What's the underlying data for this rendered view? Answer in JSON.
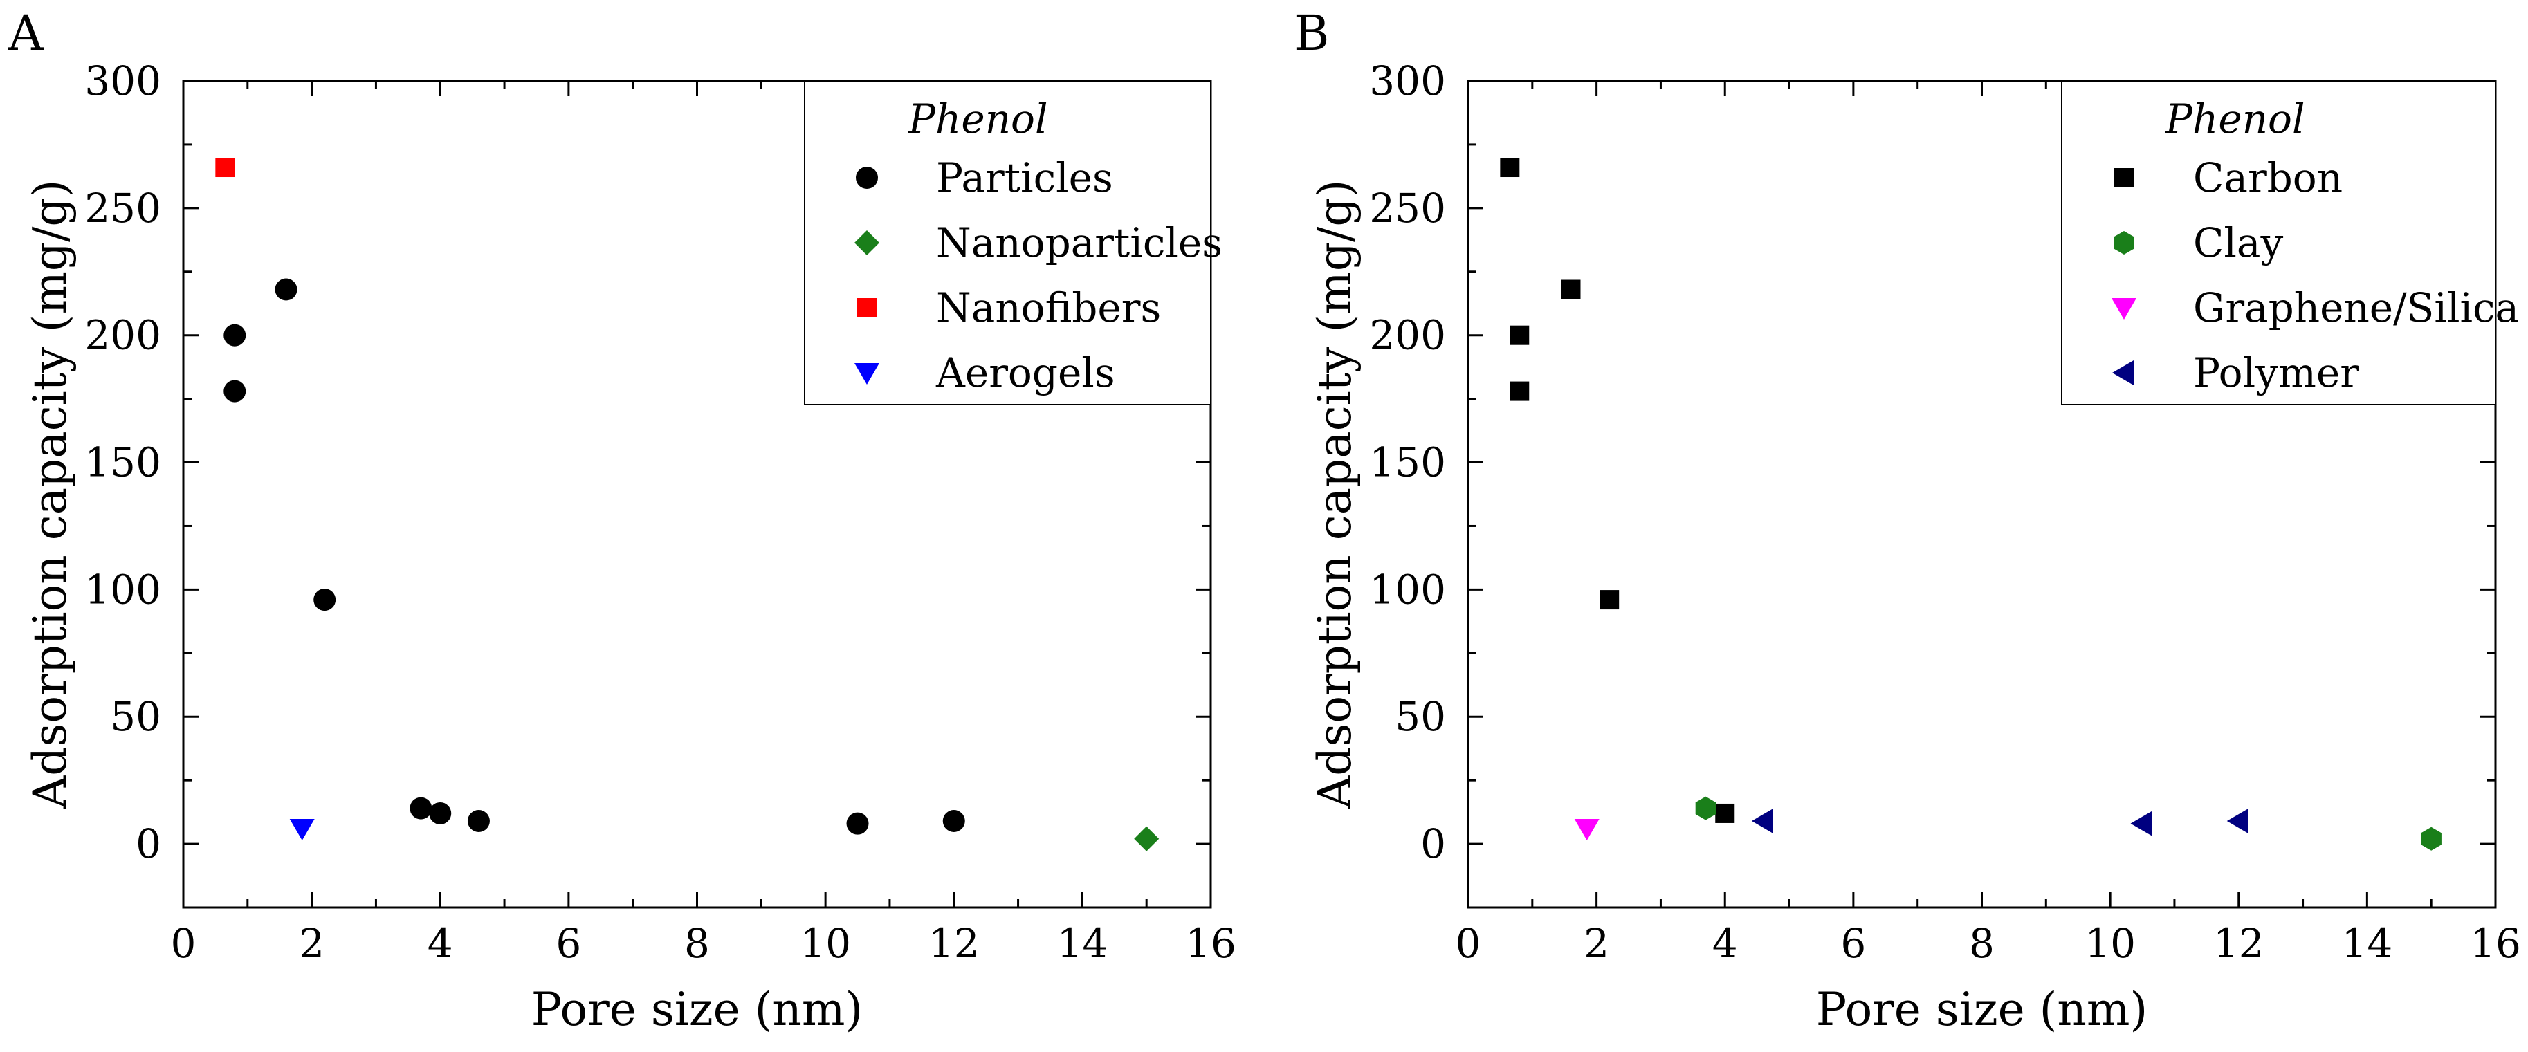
{
  "chart_data": [
    {
      "type": "scatter",
      "panel_label": "A",
      "xlabel": "Pore size (nm)",
      "ylabel": "Adsorption capacity (mg/g)",
      "xlim": [
        0,
        16
      ],
      "ylim": [
        -25,
        300
      ],
      "x_ticks": [
        0,
        2,
        4,
        6,
        8,
        10,
        12,
        14,
        16
      ],
      "y_ticks": [
        0,
        50,
        100,
        150,
        200,
        250,
        300
      ],
      "legend_title": "Phenol",
      "legend_position": "top-right",
      "series": [
        {
          "name": "Particles",
          "marker": "circle",
          "color": "#000000",
          "points": [
            [
              0.8,
              200
            ],
            [
              0.8,
              178
            ],
            [
              1.6,
              218
            ],
            [
              2.2,
              96
            ],
            [
              3.7,
              14
            ],
            [
              4.0,
              12
            ],
            [
              4.6,
              9
            ],
            [
              10.5,
              8
            ],
            [
              12.0,
              9
            ]
          ]
        },
        {
          "name": "Nanoparticles",
          "marker": "diamond",
          "color": "#1a7f1a",
          "points": [
            [
              15.0,
              2
            ]
          ]
        },
        {
          "name": "Nanofibers",
          "marker": "square",
          "color": "#ff0000",
          "points": [
            [
              0.65,
              266
            ]
          ]
        },
        {
          "name": "Aerogels",
          "marker": "triangle-down",
          "color": "#0000ff",
          "points": [
            [
              1.85,
              6
            ]
          ]
        }
      ]
    },
    {
      "type": "scatter",
      "panel_label": "B",
      "xlabel": "Pore size (nm)",
      "ylabel": "Adsorption capacity (mg/g)",
      "xlim": [
        0,
        16
      ],
      "ylim": [
        -25,
        300
      ],
      "x_ticks": [
        0,
        2,
        4,
        6,
        8,
        10,
        12,
        14,
        16
      ],
      "y_ticks": [
        0,
        50,
        100,
        150,
        200,
        250,
        300
      ],
      "legend_title": "Phenol",
      "legend_position": "top-right",
      "series": [
        {
          "name": "Carbon",
          "marker": "square",
          "color": "#000000",
          "points": [
            [
              0.65,
              266
            ],
            [
              0.8,
              200
            ],
            [
              0.8,
              178
            ],
            [
              1.6,
              218
            ],
            [
              2.2,
              96
            ],
            [
              4.0,
              12
            ]
          ]
        },
        {
          "name": "Clay",
          "marker": "hexagon",
          "color": "#1a7f1a",
          "points": [
            [
              3.7,
              14
            ],
            [
              15.0,
              2
            ]
          ]
        },
        {
          "name": "Graphene/Silica",
          "marker": "triangle-down",
          "color": "#ff00ff",
          "points": [
            [
              1.85,
              6
            ]
          ]
        },
        {
          "name": "Polymer",
          "marker": "triangle-left",
          "color": "#000080",
          "points": [
            [
              4.6,
              9
            ],
            [
              10.5,
              8
            ],
            [
              12.0,
              9
            ]
          ]
        }
      ]
    }
  ]
}
